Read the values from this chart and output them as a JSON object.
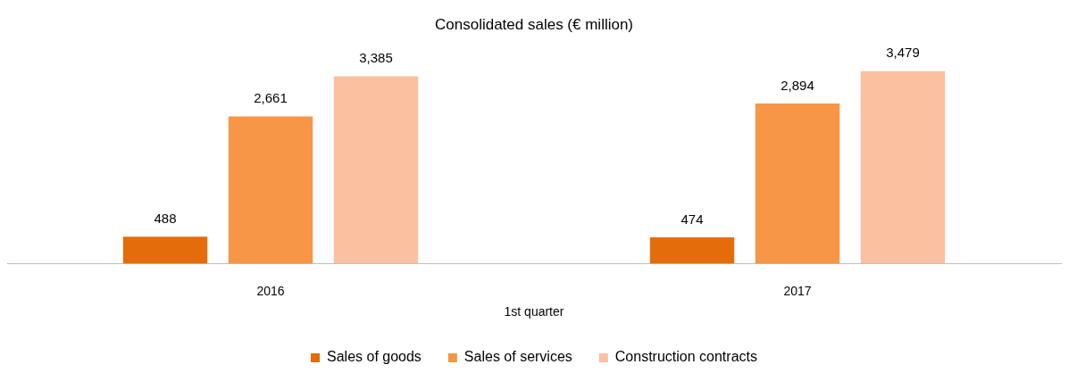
{
  "chart_data": {
    "type": "bar",
    "title": "Consolidated sales (€ million)",
    "xlabel": "1st quarter",
    "categories": [
      "2016",
      "2017"
    ],
    "series": [
      {
        "name": "Sales of goods",
        "color": "#e46c0a",
        "values": [
          488,
          474
        ],
        "value_labels": [
          "488",
          "474"
        ]
      },
      {
        "name": "Sales of services",
        "color": "#f79646",
        "values": [
          2661,
          2894
        ],
        "value_labels": [
          "2,661",
          "2,894"
        ]
      },
      {
        "name": "Construction contracts",
        "color": "#fac0a0",
        "values": [
          3385,
          3479
        ],
        "value_labels": [
          "3,385",
          "3,479"
        ]
      }
    ],
    "legend": "bottom",
    "grid": false
  }
}
